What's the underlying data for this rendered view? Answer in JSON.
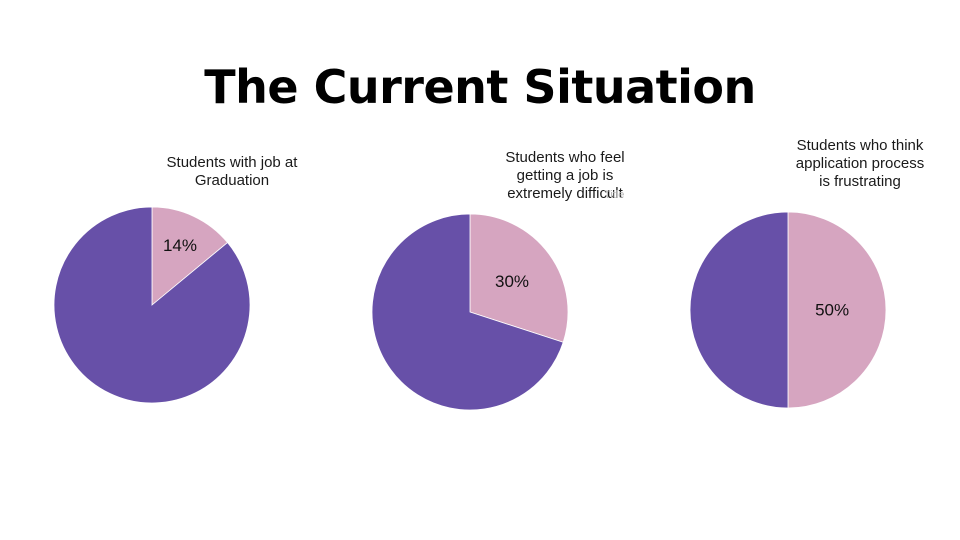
{
  "slide": {
    "title": "The Current Situation",
    "overlap_text": "Title"
  },
  "colors": {
    "primary": "#6750a8",
    "secondary": "#d6a5c0",
    "edge": "#ffffff"
  },
  "chart_data": [
    {
      "type": "pie",
      "title": "Students with job at Graduation",
      "title_lines": [
        "Students with job at",
        "Graduation"
      ],
      "slices": [
        {
          "value": 14,
          "label": "14%",
          "color": "#d6a5c0"
        },
        {
          "value": 86,
          "label": "",
          "color": "#6750a8"
        }
      ]
    },
    {
      "type": "pie",
      "title": "Students who feel getting a job is extremely difficult",
      "title_lines": [
        "Students who feel",
        "getting a job is",
        "extremely difficult"
      ],
      "slices": [
        {
          "value": 30,
          "label": "30%",
          "color": "#d6a5c0"
        },
        {
          "value": 70,
          "label": "",
          "color": "#6750a8"
        }
      ]
    },
    {
      "type": "pie",
      "title": "Students who think application process is frustrating",
      "title_lines": [
        "Students who think",
        "application process",
        "is frustrating"
      ],
      "slices": [
        {
          "value": 50,
          "label": "50%",
          "color": "#d6a5c0"
        },
        {
          "value": 50,
          "label": "",
          "color": "#6750a8"
        }
      ]
    }
  ]
}
